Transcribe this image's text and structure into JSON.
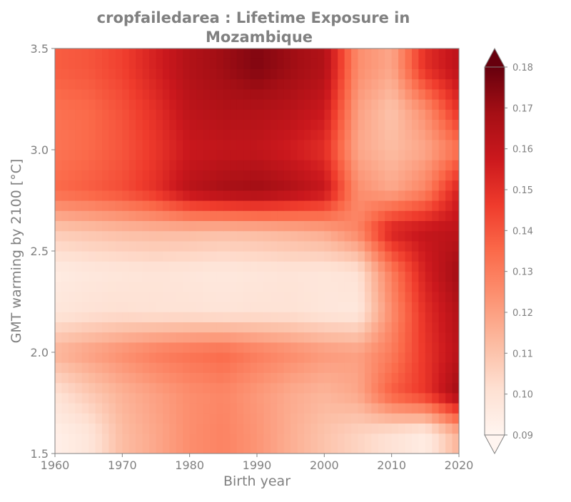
{
  "chart_data": {
    "type": "heatmap",
    "title_lines": [
      "cropfailedarea : Lifetime Exposure in",
      "Mozambique"
    ],
    "xlabel": "Birth year",
    "ylabel": "GMT warming by 2100 [°C]",
    "xlim": [
      1960,
      2020
    ],
    "ylim": [
      1.5,
      3.5
    ],
    "x_ticks": [
      "1960",
      "1970",
      "1980",
      "1990",
      "2000",
      "2010",
      "2020"
    ],
    "y_ticks": [
      "1.5",
      "2.0",
      "2.5",
      "3.0",
      "3.5"
    ],
    "x": [
      1960,
      1965,
      1970,
      1975,
      1980,
      1985,
      1990,
      1995,
      2000,
      2005,
      2010,
      2015,
      2020
    ],
    "y": [
      1.6,
      1.8,
      2.0,
      2.2,
      2.4,
      2.6,
      2.8,
      3.0,
      3.2,
      3.4
    ],
    "z": [
      [
        0.093,
        0.098,
        0.112,
        0.118,
        0.125,
        0.128,
        0.123,
        0.116,
        0.11,
        0.105,
        0.1,
        0.095,
        0.115
      ],
      [
        0.1,
        0.108,
        0.115,
        0.12,
        0.125,
        0.127,
        0.122,
        0.117,
        0.114,
        0.118,
        0.138,
        0.148,
        0.17
      ],
      [
        0.115,
        0.12,
        0.125,
        0.13,
        0.133,
        0.135,
        0.13,
        0.126,
        0.122,
        0.12,
        0.13,
        0.148,
        0.163
      ],
      [
        0.098,
        0.1,
        0.101,
        0.1,
        0.1,
        0.099,
        0.1,
        0.1,
        0.098,
        0.097,
        0.125,
        0.15,
        0.165
      ],
      [
        0.095,
        0.097,
        0.098,
        0.099,
        0.098,
        0.097,
        0.098,
        0.099,
        0.098,
        0.1,
        0.13,
        0.155,
        0.17
      ],
      [
        0.108,
        0.11,
        0.112,
        0.113,
        0.113,
        0.112,
        0.113,
        0.115,
        0.118,
        0.128,
        0.155,
        0.16,
        0.162
      ],
      [
        0.135,
        0.138,
        0.142,
        0.15,
        0.163,
        0.168,
        0.17,
        0.166,
        0.16,
        0.125,
        0.118,
        0.128,
        0.155
      ],
      [
        0.132,
        0.135,
        0.14,
        0.148,
        0.158,
        0.16,
        0.16,
        0.156,
        0.15,
        0.118,
        0.112,
        0.118,
        0.132
      ],
      [
        0.133,
        0.135,
        0.141,
        0.15,
        0.162,
        0.165,
        0.165,
        0.163,
        0.158,
        0.12,
        0.11,
        0.125,
        0.15
      ],
      [
        0.138,
        0.14,
        0.145,
        0.155,
        0.165,
        0.17,
        0.175,
        0.17,
        0.165,
        0.125,
        0.118,
        0.15,
        0.162
      ]
    ],
    "colorbar": {
      "min": 0.09,
      "max": 0.18,
      "extend": "both",
      "ticks": [
        "0.09",
        "0.10",
        "0.11",
        "0.12",
        "0.13",
        "0.14",
        "0.15",
        "0.16",
        "0.17",
        "0.18"
      ],
      "colormap": "Reds",
      "colors": [
        "#fff5f0",
        "#fee0d2",
        "#fcbba1",
        "#fc9272",
        "#fb6a4a",
        "#ef3b2c",
        "#cb181d",
        "#a50f15",
        "#67000d"
      ]
    },
    "legend": "none",
    "grid": false
  }
}
